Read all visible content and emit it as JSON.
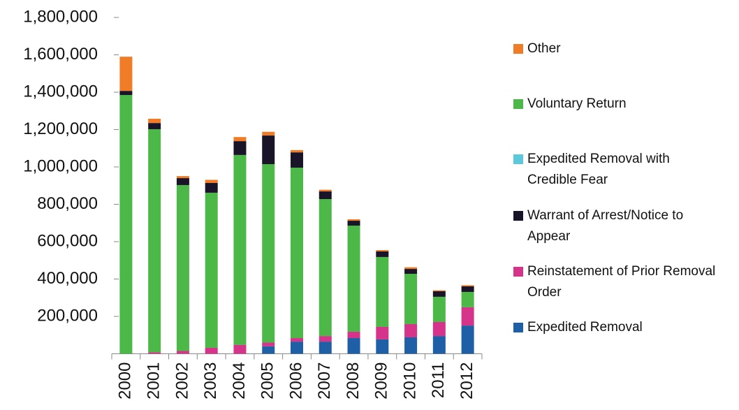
{
  "chart_data": {
    "type": "stacked-bar",
    "categories": [
      "2000",
      "2001",
      "2002",
      "2003",
      "2004",
      "2005",
      "2006",
      "2007",
      "2008",
      "2009",
      "2010",
      "2011",
      "2012"
    ],
    "series": [
      {
        "name": "Expedited Removal",
        "color": "#1f5fa6",
        "values": [
          0,
          0,
          0,
          0,
          0,
          40000,
          65000,
          65000,
          84000,
          77000,
          88000,
          95000,
          151000
        ]
      },
      {
        "name": "Reinstatement of Prior Removal Order",
        "color": "#d6338a",
        "values": [
          0,
          8000,
          15000,
          32000,
          48000,
          20000,
          19000,
          30000,
          34000,
          67000,
          71000,
          75000,
          98000
        ]
      },
      {
        "name": "Voluntary Return",
        "color": "#4cb847",
        "values": [
          1385000,
          1194000,
          888000,
          830000,
          1016000,
          955000,
          912000,
          733000,
          568000,
          374000,
          269000,
          135000,
          82000
        ]
      },
      {
        "name": "Warrant of Arrest/Notice to Appear",
        "color": "#1a1428",
        "values": [
          22000,
          33000,
          37000,
          52000,
          74000,
          153000,
          82000,
          41000,
          26000,
          30000,
          26000,
          30000,
          30000
        ]
      },
      {
        "name": "Expedited Removal with Credible Fear",
        "color": "#5bc8dc",
        "values": [
          0,
          0,
          0,
          0,
          0,
          0,
          0,
          0,
          0,
          0,
          0,
          0,
          0
        ]
      },
      {
        "name": "Other",
        "color": "#f07c27",
        "values": [
          183000,
          23000,
          11000,
          17000,
          22000,
          20000,
          12000,
          9000,
          8000,
          7000,
          9000,
          5000,
          6000
        ]
      }
    ],
    "ylim": [
      0,
      1800000
    ],
    "yticks": [
      {
        "value": 200000,
        "label": "200,000"
      },
      {
        "value": 400000,
        "label": "400,000"
      },
      {
        "value": 600000,
        "label": "600,000"
      },
      {
        "value": 800000,
        "label": "800,000"
      },
      {
        "value": 1000000,
        "label": "1,000,000"
      },
      {
        "value": 1200000,
        "label": "1,200,000"
      },
      {
        "value": 1400000,
        "label": "1,400,000"
      },
      {
        "value": 1600000,
        "label": "1,600,000"
      },
      {
        "value": 1800000,
        "label": "1,800,000"
      }
    ]
  }
}
